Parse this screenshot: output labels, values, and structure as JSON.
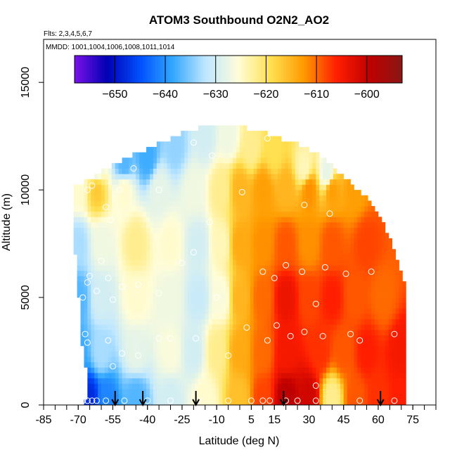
{
  "chart_data": {
    "type": "heatmap",
    "title": "ATOM3 Southbound O2N2_AO2",
    "subtitle_flights": "Flts: 2,3,4,5,6,7",
    "subtitle_dates": "MMDD: 1001,1004,1006,1008,1011,1014",
    "xlabel": "Latitude (deg N)",
    "ylabel": "Altitude (m)",
    "xlim": [
      -85,
      85
    ],
    "ylim": [
      0,
      17000
    ],
    "x_ticks": [
      -85,
      -70,
      -55,
      -40,
      -25,
      -10,
      5,
      15,
      30,
      45,
      60,
      75
    ],
    "y_ticks": [
      0,
      5000,
      10000,
      15000
    ],
    "colorbar": {
      "min": -658,
      "max": -593,
      "ticks": [
        -650,
        -640,
        -630,
        -620,
        -610,
        -600
      ],
      "colors": [
        "#7a11ea",
        "#0000b4",
        "#0050ff",
        "#33a7ff",
        "#bfe7ff",
        "#fffdd8",
        "#ffe050",
        "#ff9a00",
        "#ff1e00",
        "#c00000",
        "#8a1616"
      ],
      "placement": "top-inside"
    },
    "ceiling_profile": [
      [
        -72,
        10000
      ],
      [
        -65,
        10400
      ],
      [
        -60,
        10800
      ],
      [
        -50,
        11300
      ],
      [
        -40,
        11800
      ],
      [
        -25,
        12500
      ],
      [
        -15,
        12900
      ],
      [
        -5,
        12900
      ],
      [
        5,
        12700
      ],
      [
        15,
        12400
      ],
      [
        25,
        12000
      ],
      [
        35,
        11500
      ],
      [
        45,
        10500
      ],
      [
        55,
        9500
      ],
      [
        62,
        8500
      ],
      [
        67,
        7000
      ],
      [
        72,
        5500
      ]
    ],
    "floor_profile": [
      [
        -72,
        0
      ],
      [
        -67,
        0
      ],
      [
        -66,
        1200
      ],
      [
        -68,
        2500
      ],
      [
        -69,
        4000
      ],
      [
        -70,
        5500
      ],
      [
        -71,
        6800
      ],
      [
        -72,
        8000
      ],
      [
        -72,
        10000
      ]
    ],
    "value_field_nodes": [
      {
        "lat": -70,
        "alt": 300,
        "v": -643
      },
      {
        "lat": -65,
        "alt": 300,
        "v": -648
      },
      {
        "lat": -58,
        "alt": 300,
        "v": -641
      },
      {
        "lat": -45,
        "alt": 300,
        "v": -637
      },
      {
        "lat": -30,
        "alt": 300,
        "v": -630
      },
      {
        "lat": -15,
        "alt": 300,
        "v": -625
      },
      {
        "lat": 0,
        "alt": 300,
        "v": -616
      },
      {
        "lat": 10,
        "alt": 300,
        "v": -608
      },
      {
        "lat": 20,
        "alt": 300,
        "v": -599
      },
      {
        "lat": 30,
        "alt": 300,
        "v": -601
      },
      {
        "lat": 40,
        "alt": 300,
        "v": -622
      },
      {
        "lat": 50,
        "alt": 300,
        "v": -609
      },
      {
        "lat": 60,
        "alt": 300,
        "v": -607
      },
      {
        "lat": 70,
        "alt": 300,
        "v": -606
      },
      {
        "lat": -70,
        "alt": 2500,
        "v": -638
      },
      {
        "lat": -60,
        "alt": 2500,
        "v": -633
      },
      {
        "lat": -45,
        "alt": 2500,
        "v": -628
      },
      {
        "lat": -30,
        "alt": 2500,
        "v": -626
      },
      {
        "lat": -20,
        "alt": 2500,
        "v": -630
      },
      {
        "lat": -10,
        "alt": 2500,
        "v": -622
      },
      {
        "lat": 0,
        "alt": 2500,
        "v": -614
      },
      {
        "lat": 10,
        "alt": 2500,
        "v": -610
      },
      {
        "lat": 20,
        "alt": 2500,
        "v": -605
      },
      {
        "lat": 35,
        "alt": 2500,
        "v": -607
      },
      {
        "lat": 45,
        "alt": 2500,
        "v": -609
      },
      {
        "lat": 55,
        "alt": 2500,
        "v": -606
      },
      {
        "lat": 70,
        "alt": 2500,
        "v": -605
      },
      {
        "lat": -70,
        "alt": 5000,
        "v": -637
      },
      {
        "lat": -60,
        "alt": 5000,
        "v": -630
      },
      {
        "lat": -45,
        "alt": 5000,
        "v": -625
      },
      {
        "lat": -30,
        "alt": 5000,
        "v": -627
      },
      {
        "lat": -18,
        "alt": 5000,
        "v": -631
      },
      {
        "lat": -8,
        "alt": 5000,
        "v": -626
      },
      {
        "lat": 0,
        "alt": 5000,
        "v": -615
      },
      {
        "lat": 10,
        "alt": 5000,
        "v": -610
      },
      {
        "lat": 20,
        "alt": 5000,
        "v": -604
      },
      {
        "lat": 30,
        "alt": 5000,
        "v": -608
      },
      {
        "lat": 40,
        "alt": 5000,
        "v": -606
      },
      {
        "lat": 50,
        "alt": 5000,
        "v": -609
      },
      {
        "lat": 62,
        "alt": 5000,
        "v": -610
      },
      {
        "lat": -70,
        "alt": 7500,
        "v": -633
      },
      {
        "lat": -60,
        "alt": 7500,
        "v": -627
      },
      {
        "lat": -45,
        "alt": 7500,
        "v": -622
      },
      {
        "lat": -30,
        "alt": 7500,
        "v": -625
      },
      {
        "lat": -18,
        "alt": 7500,
        "v": -630
      },
      {
        "lat": -8,
        "alt": 7500,
        "v": -624
      },
      {
        "lat": 0,
        "alt": 7500,
        "v": -614
      },
      {
        "lat": 10,
        "alt": 7500,
        "v": -612
      },
      {
        "lat": 20,
        "alt": 7500,
        "v": -609
      },
      {
        "lat": 30,
        "alt": 7500,
        "v": -612
      },
      {
        "lat": 40,
        "alt": 7500,
        "v": -609
      },
      {
        "lat": 55,
        "alt": 7500,
        "v": -608
      },
      {
        "lat": -70,
        "alt": 10000,
        "v": -625
      },
      {
        "lat": -62,
        "alt": 10000,
        "v": -617
      },
      {
        "lat": -50,
        "alt": 10000,
        "v": -625
      },
      {
        "lat": -35,
        "alt": 10000,
        "v": -628
      },
      {
        "lat": -20,
        "alt": 10000,
        "v": -627
      },
      {
        "lat": -8,
        "alt": 10000,
        "v": -622
      },
      {
        "lat": 0,
        "alt": 10000,
        "v": -615
      },
      {
        "lat": 10,
        "alt": 10000,
        "v": -613
      },
      {
        "lat": 20,
        "alt": 10000,
        "v": -615
      },
      {
        "lat": 30,
        "alt": 10000,
        "v": -612
      },
      {
        "lat": 40,
        "alt": 10000,
        "v": -613
      },
      {
        "lat": 50,
        "alt": 10000,
        "v": -613
      },
      {
        "lat": -62,
        "alt": 11000,
        "v": -628
      },
      {
        "lat": -50,
        "alt": 11200,
        "v": -637
      },
      {
        "lat": -40,
        "alt": 11500,
        "v": -638
      },
      {
        "lat": -28,
        "alt": 12000,
        "v": -634
      },
      {
        "lat": -15,
        "alt": 12500,
        "v": -630
      },
      {
        "lat": -5,
        "alt": 12500,
        "v": -627
      },
      {
        "lat": 5,
        "alt": 12000,
        "v": -622
      },
      {
        "lat": 15,
        "alt": 11800,
        "v": -619
      },
      {
        "lat": 28,
        "alt": 11000,
        "v": -624
      },
      {
        "lat": 38,
        "alt": 10800,
        "v": -628
      }
    ],
    "sample_points": [
      {
        "lat": -68,
        "alt": 200
      },
      {
        "lat": -66,
        "alt": 200
      },
      {
        "lat": -64,
        "alt": 200
      },
      {
        "lat": -62,
        "alt": 200
      },
      {
        "lat": -58,
        "alt": 200
      },
      {
        "lat": -50,
        "alt": 200
      },
      {
        "lat": -40,
        "alt": 200
      },
      {
        "lat": -30,
        "alt": 200
      },
      {
        "lat": -18,
        "alt": 200
      },
      {
        "lat": -5,
        "alt": 200
      },
      {
        "lat": 5,
        "alt": 200
      },
      {
        "lat": 10,
        "alt": 200
      },
      {
        "lat": 13,
        "alt": 200
      },
      {
        "lat": 20,
        "alt": 200
      },
      {
        "lat": 25,
        "alt": 200
      },
      {
        "lat": 33,
        "alt": 200
      },
      {
        "lat": 33,
        "alt": 900
      },
      {
        "lat": 52,
        "alt": 200
      },
      {
        "lat": 67,
        "alt": 200
      },
      {
        "lat": -67,
        "alt": 3300
      },
      {
        "lat": -66,
        "alt": 2900
      },
      {
        "lat": -57,
        "alt": 3000
      },
      {
        "lat": -55,
        "alt": 1800
      },
      {
        "lat": -51,
        "alt": 2400
      },
      {
        "lat": -44,
        "alt": 2300
      },
      {
        "lat": -35,
        "alt": 3100
      },
      {
        "lat": -30,
        "alt": 3100
      },
      {
        "lat": -19,
        "alt": 3100
      },
      {
        "lat": -5,
        "alt": 2300
      },
      {
        "lat": 3,
        "alt": 3600
      },
      {
        "lat": 12,
        "alt": 3000
      },
      {
        "lat": 16,
        "alt": 3700
      },
      {
        "lat": 28,
        "alt": 3400
      },
      {
        "lat": 36,
        "alt": 3200
      },
      {
        "lat": 48,
        "alt": 3300
      },
      {
        "lat": 52,
        "alt": 3000
      },
      {
        "lat": 67,
        "alt": 3300
      },
      {
        "lat": -68,
        "alt": 5000
      },
      {
        "lat": -66,
        "alt": 5700
      },
      {
        "lat": -62,
        "alt": 5300
      },
      {
        "lat": -57,
        "alt": 5900
      },
      {
        "lat": -51,
        "alt": 5500
      },
      {
        "lat": -44,
        "alt": 5600
      },
      {
        "lat": -35,
        "alt": 5200
      },
      {
        "lat": -25,
        "alt": 6600
      },
      {
        "lat": -10,
        "alt": 5000
      },
      {
        "lat": 10,
        "alt": 6200
      },
      {
        "lat": 20,
        "alt": 6500
      },
      {
        "lat": 27,
        "alt": 6200
      },
      {
        "lat": 33,
        "alt": 4700
      },
      {
        "lat": 37,
        "alt": 6400
      },
      {
        "lat": 46,
        "alt": 6100
      },
      {
        "lat": 57,
        "alt": 6200
      },
      {
        "lat": -65,
        "alt": 6000
      },
      {
        "lat": -60,
        "alt": 6700
      },
      {
        "lat": -55,
        "alt": 4900
      },
      {
        "lat": -20,
        "alt": 7100
      },
      {
        "lat": -13,
        "alt": 8500
      },
      {
        "lat": 15,
        "alt": 5900
      },
      {
        "lat": 22,
        "alt": 3200
      },
      {
        "lat": 39,
        "alt": 8900
      },
      {
        "lat": 28,
        "alt": 9300
      },
      {
        "lat": -66,
        "alt": 10000
      },
      {
        "lat": -64,
        "alt": 10200
      },
      {
        "lat": -58,
        "alt": 9200
      },
      {
        "lat": -56,
        "alt": 8600
      },
      {
        "lat": -52,
        "alt": 10000
      },
      {
        "lat": -46,
        "alt": 11000
      },
      {
        "lat": -35,
        "alt": 10000
      },
      {
        "lat": -20,
        "alt": 12200
      },
      {
        "lat": -12,
        "alt": 11600
      },
      {
        "lat": 1,
        "alt": 9900
      },
      {
        "lat": 12,
        "alt": 12400
      }
    ],
    "arrow_latitudes": [
      -54,
      -42,
      -19,
      19,
      61
    ]
  }
}
